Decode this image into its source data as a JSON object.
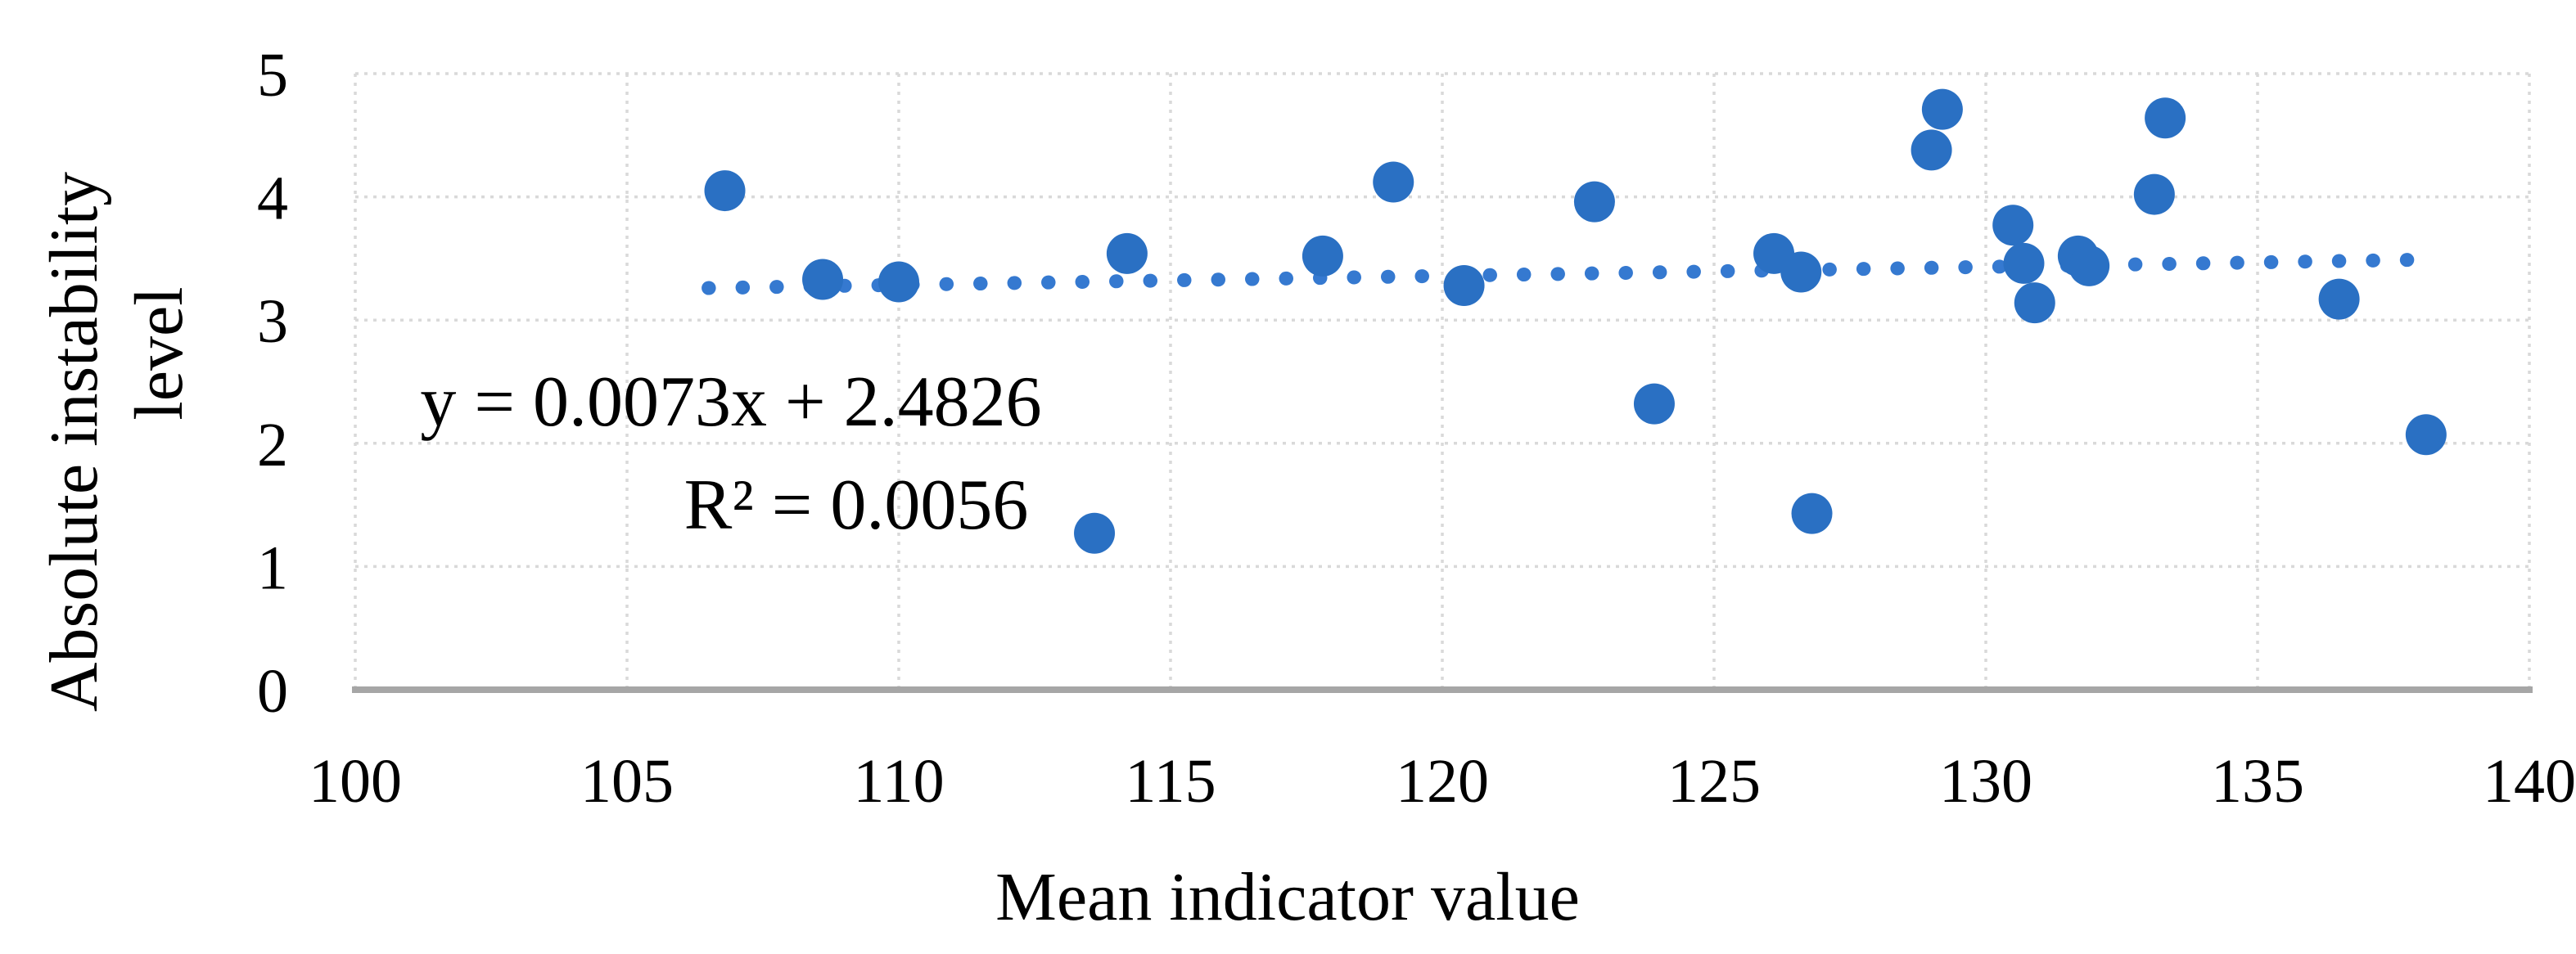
{
  "chart_data": {
    "type": "scatter",
    "title": "",
    "xlabel": "Mean indicator value",
    "ylabel_lines": [
      "Absolute instability",
      "level"
    ],
    "xlim": [
      100,
      140
    ],
    "ylim": [
      0,
      5
    ],
    "x_ticks": [
      "100",
      "105",
      "110",
      "115",
      "120",
      "125",
      "130",
      "135",
      "140"
    ],
    "x_tick_values": [
      100,
      105,
      110,
      115,
      120,
      125,
      130,
      135,
      140
    ],
    "y_ticks": [
      "0",
      "1",
      "2",
      "3",
      "4",
      "5"
    ],
    "y_tick_values": [
      0,
      1,
      2,
      3,
      4,
      5
    ],
    "grid": true,
    "legend_position": "none",
    "points": [
      [
        106.8,
        4.05
      ],
      [
        108.6,
        3.33
      ],
      [
        110.0,
        3.31
      ],
      [
        113.6,
        1.27
      ],
      [
        114.2,
        3.54
      ],
      [
        117.8,
        3.52
      ],
      [
        119.1,
        4.12
      ],
      [
        120.4,
        3.28
      ],
      [
        122.8,
        3.96
      ],
      [
        123.9,
        2.32
      ],
      [
        126.1,
        3.54
      ],
      [
        126.6,
        3.39
      ],
      [
        126.8,
        1.43
      ],
      [
        129.0,
        4.38
      ],
      [
        129.2,
        4.71
      ],
      [
        130.5,
        3.77
      ],
      [
        130.7,
        3.46
      ],
      [
        130.9,
        3.14
      ],
      [
        131.7,
        3.52
      ],
      [
        131.9,
        3.44
      ],
      [
        133.1,
        4.02
      ],
      [
        133.3,
        4.64
      ],
      [
        136.5,
        3.17
      ],
      [
        138.1,
        2.07
      ]
    ],
    "trendline": {
      "slope": 0.0073,
      "intercept": 2.4826,
      "x_start": 106.5,
      "x_end": 138.3,
      "style": "dotted",
      "equation_label": "y = 0.0073x + 2.4826",
      "r_squared_label": "R² = 0.0056"
    },
    "colors": {
      "marker": "#2A70C3",
      "trendline": "#3579D0",
      "gridline": "#D9D9D9",
      "axis_line": "#A6A6A6",
      "text": "#000000",
      "background": "#FFFFFF"
    }
  }
}
